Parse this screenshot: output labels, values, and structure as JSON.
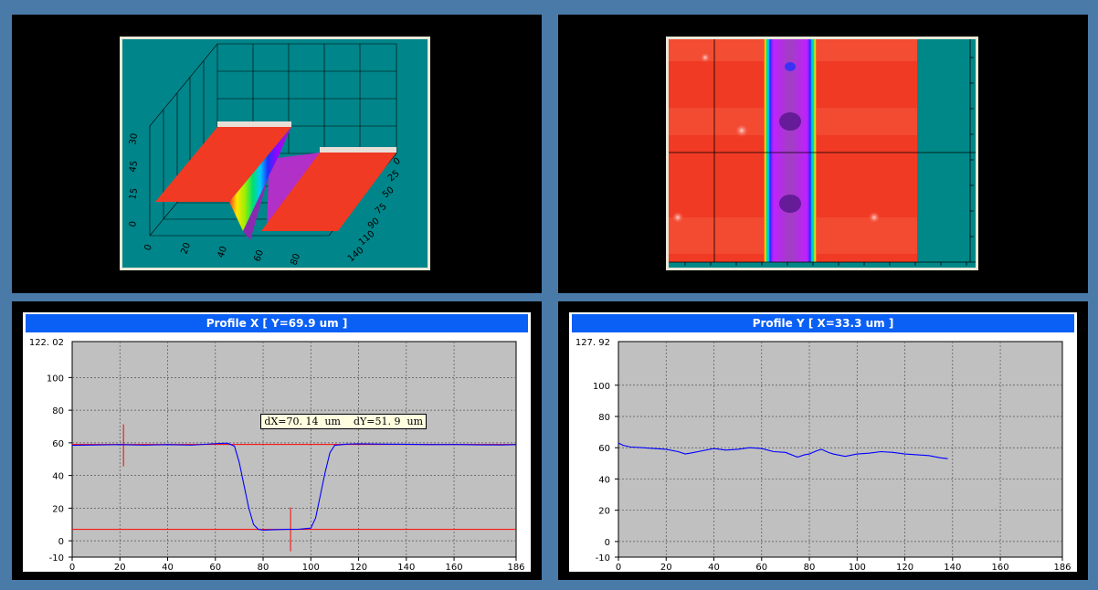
{
  "panels": {
    "surface3d": {
      "axis_labels_z": [
        "30",
        "45",
        "15",
        "0"
      ],
      "axis_labels_x": [
        "0",
        "20",
        "40",
        "60",
        "80"
      ],
      "axis_labels_y": [
        "0",
        "25",
        "50",
        "75",
        "90",
        "110",
        "140"
      ]
    },
    "topview": {}
  },
  "chart_data": [
    {
      "type": "line",
      "title": "Profile X   [ Y=69.9 um ]",
      "ymax_label": "122. 02",
      "xlim": [
        0,
        186
      ],
      "ylim": [
        -10,
        122.02
      ],
      "x_ticks": [
        "0",
        "20",
        "40",
        "60",
        "80",
        "100",
        "120",
        "140",
        "160",
        "186"
      ],
      "x_tick_values": [
        0,
        20,
        40,
        60,
        80,
        100,
        120,
        140,
        160,
        186
      ],
      "y_ticks": [
        "100",
        "80",
        "60",
        "40",
        "20",
        "0",
        "-10"
      ],
      "y_tick_values": [
        100,
        80,
        60,
        40,
        20,
        0,
        -10
      ],
      "grid": true,
      "series": [
        {
          "color": "#0000ff",
          "x": [
            0,
            10,
            20,
            30,
            40,
            50,
            60,
            65,
            68,
            70,
            72,
            74,
            76,
            78,
            80,
            85,
            90,
            95,
            100,
            102,
            104,
            106,
            108,
            110,
            115,
            120,
            130,
            140,
            150,
            160,
            170,
            180,
            186
          ],
          "y": [
            58.5,
            58.7,
            58.9,
            58.6,
            58.9,
            58.6,
            59.5,
            59.8,
            58,
            48,
            34,
            20,
            10,
            7,
            6.5,
            6.8,
            7,
            7.1,
            7.8,
            14,
            28,
            42,
            54,
            58.5,
            59.2,
            59.4,
            59.2,
            59.1,
            58.9,
            59,
            58.8,
            58.7,
            58.9
          ]
        }
      ],
      "cursor_lines": {
        "color": "#ff0000",
        "y_upper": 59,
        "y_lower": 7,
        "x_marker_1": 21.5,
        "x_marker_2": 91.5
      },
      "annotation": "dX=70. 14  um    dY=51. 9  um"
    },
    {
      "type": "line",
      "title": "Profile Y    [ X=33.3 um ]",
      "ymax_label": "127. 92",
      "xlim": [
        0,
        186
      ],
      "ylim": [
        -10,
        127.92
      ],
      "x_ticks": [
        "0",
        "20",
        "40",
        "60",
        "80",
        "100",
        "120",
        "140",
        "160",
        "186"
      ],
      "x_tick_values": [
        0,
        20,
        40,
        60,
        80,
        100,
        120,
        140,
        160,
        186
      ],
      "y_ticks": [
        "100",
        "80",
        "60",
        "40",
        "20",
        "0",
        "-10"
      ],
      "y_tick_values": [
        100,
        80,
        60,
        40,
        20,
        0,
        -10
      ],
      "grid": true,
      "series": [
        {
          "color": "#0000ff",
          "x": [
            0,
            2,
            5,
            10,
            15,
            20,
            25,
            28,
            30,
            35,
            40,
            45,
            50,
            55,
            60,
            65,
            70,
            75,
            78,
            80,
            83,
            85,
            88,
            90,
            95,
            100,
            105,
            110,
            115,
            120,
            125,
            130,
            135,
            138
          ],
          "y": [
            63,
            61.5,
            60.5,
            60,
            59.5,
            59,
            57.5,
            56,
            56.5,
            58,
            59.5,
            58.5,
            59,
            60,
            59.5,
            57.5,
            57,
            54,
            55.5,
            56,
            58,
            59,
            57,
            56,
            54.5,
            56,
            56.5,
            57.5,
            57,
            56,
            55.5,
            55,
            53.5,
            53
          ]
        }
      ]
    }
  ]
}
